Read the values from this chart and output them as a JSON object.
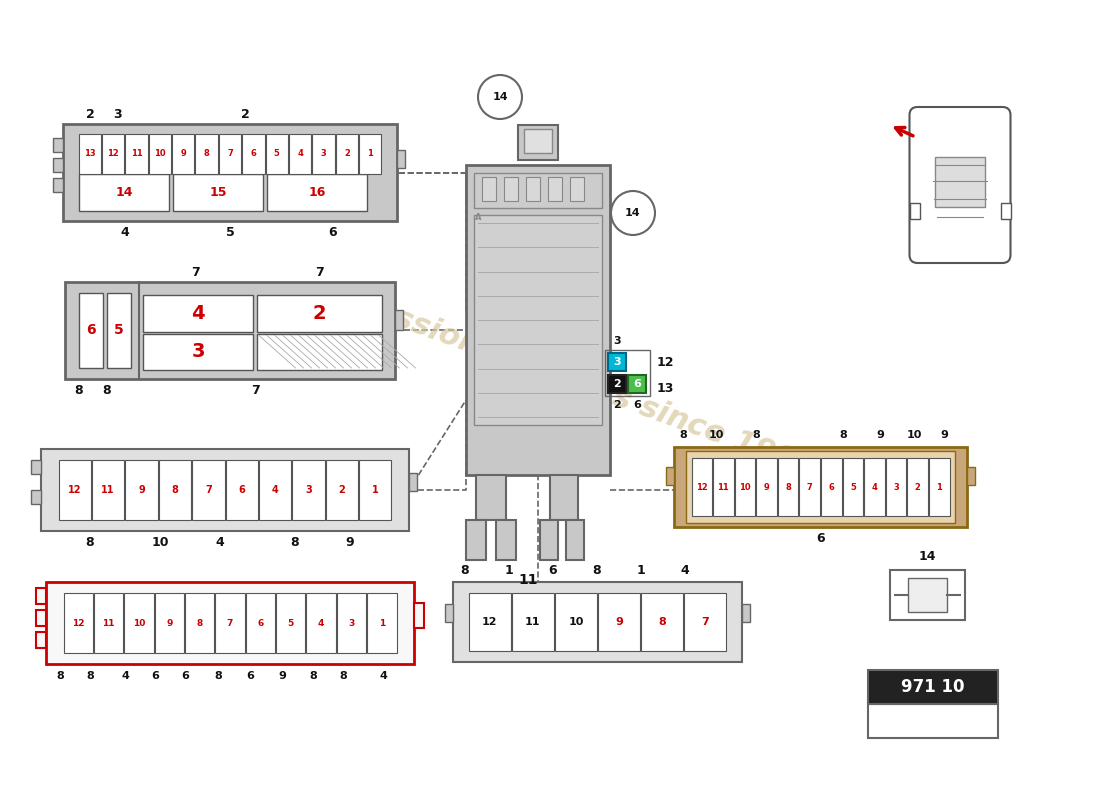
{
  "bg_color": "#ffffff",
  "red": "#cc0000",
  "black": "#111111",
  "gray_housing": "#c8c8c8",
  "gray_inner": "#e0e0e0",
  "gray_border": "#666666",
  "tan_housing": "#c8a87a",
  "tan_inner": "#e8d5b0",
  "green_fuse": "#4cbe4c",
  "cyan_fuse": "#00b8d4",
  "black_fuse": "#111111",
  "part_number": "971 10",
  "watermark_color": "#d8c89e",
  "dashed_color": "#666666"
}
